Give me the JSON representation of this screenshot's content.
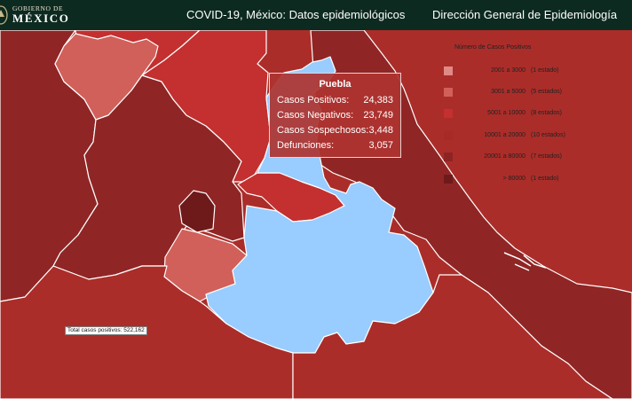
{
  "header": {
    "logo_top": "GOBIERNO DE",
    "logo_main": "MÉXICO",
    "title": "COVID-19, México: Datos epidemiológicos",
    "agency": "Dirección General de Epidemiología"
  },
  "colors": {
    "header_bg": "#0d2a20",
    "selected_state": "#99ccff",
    "tooltip_bg": "#ad3430"
  },
  "legend": {
    "title": "Número de Casos Positivos",
    "items": [
      {
        "range": "2001 a    3000",
        "count": "(1 estado)",
        "color": "#e08a86"
      },
      {
        "range": "3001 a    5000",
        "count": "(5 estados)",
        "color": "#d1605a"
      },
      {
        "range": "5001 a  10000",
        "count": "(8 estados)",
        "color": "#c3302f"
      },
      {
        "range": "10001 a   20000",
        "count": "(10 estados)",
        "color": "#a82a27"
      },
      {
        "range": "20001 a   80000",
        "count": "(7 estados)",
        "color": "#8d2424"
      },
      {
        "range": "> 80000",
        "count": "(1 estado)",
        "color": "#6e1a1a"
      }
    ]
  },
  "tooltip": {
    "state": "Puebla",
    "rows": [
      {
        "label": "Casos Positivos:",
        "value": "24,383"
      },
      {
        "label": "Casos Negativos:",
        "value": "23,749"
      },
      {
        "label": "Casos Sospechosos:",
        "value": "3,448"
      },
      {
        "label": "Defunciones:",
        "value": "3,057"
      }
    ]
  },
  "total": "Total casos positivos: 522,162"
}
